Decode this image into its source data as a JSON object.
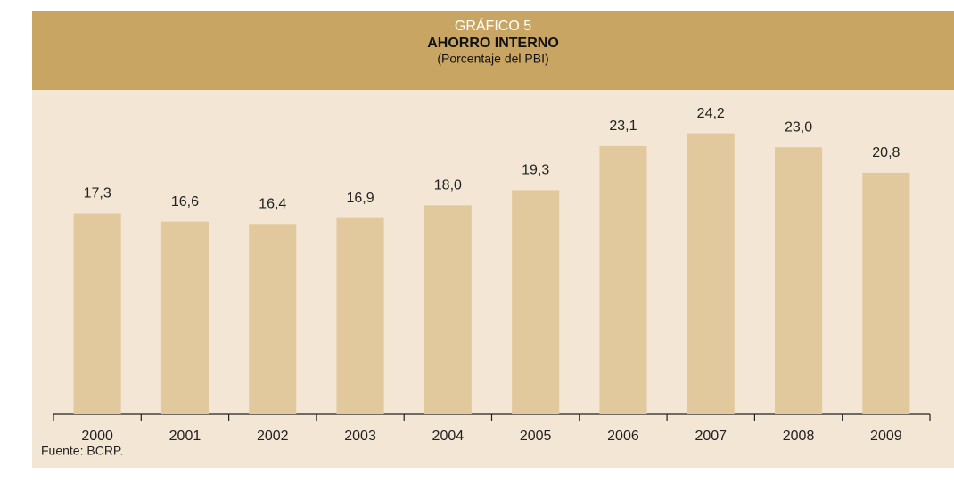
{
  "chart_data": {
    "type": "bar",
    "title": "AHORRO INTERNO",
    "chart_label": "GRÁFICO 5",
    "subtitle": "(Porcentaje del PBI)",
    "categories": [
      "2000",
      "2001",
      "2002",
      "2003",
      "2004",
      "2005",
      "2006",
      "2007",
      "2008",
      "2009"
    ],
    "values": [
      17.3,
      16.6,
      16.4,
      16.9,
      18.0,
      19.3,
      23.1,
      24.2,
      23.0,
      20.8
    ],
    "value_labels": [
      "17,3",
      "16,6",
      "16,4",
      "16,9",
      "18,0",
      "19,3",
      "23,1",
      "24,2",
      "23,0",
      "20,8"
    ],
    "color": "#e2c89d",
    "ylim": [
      0,
      30
    ],
    "source": "Fuente: BCRP."
  }
}
